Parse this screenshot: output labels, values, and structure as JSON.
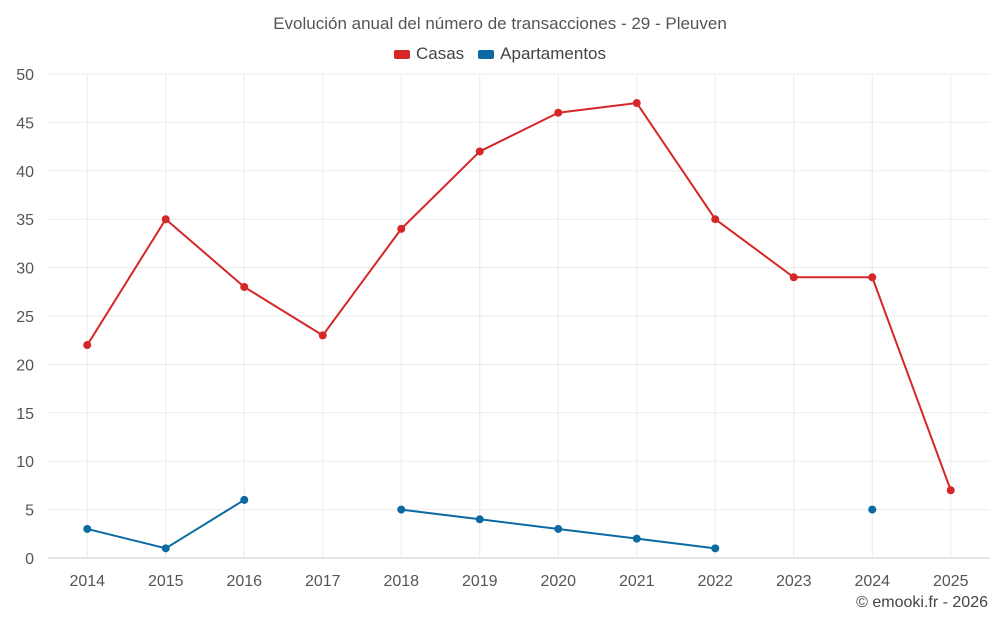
{
  "chart_data": {
    "type": "line",
    "title": "Evolución anual del número de transacciones - 29 - Pleuven",
    "categories": [
      "2014",
      "2015",
      "2016",
      "2017",
      "2018",
      "2019",
      "2020",
      "2021",
      "2022",
      "2023",
      "2024",
      "2025"
    ],
    "yticks": [
      "0",
      "5",
      "10",
      "15",
      "20",
      "25",
      "30",
      "35",
      "40",
      "45",
      "50"
    ],
    "ylim": [
      0,
      50
    ],
    "grid": true,
    "legend_position": "top-center",
    "series": [
      {
        "name": "Casas",
        "color": "#d62728",
        "values": [
          22,
          35,
          28,
          23,
          34,
          42,
          46,
          47,
          35,
          29,
          29,
          7
        ]
      },
      {
        "name": "Apartamentos",
        "color": "#0b6aa2",
        "values": [
          3,
          1,
          6,
          null,
          5,
          4,
          3,
          2,
          1,
          null,
          5,
          null
        ]
      }
    ]
  },
  "credit": "© emooki.fr - 2026"
}
